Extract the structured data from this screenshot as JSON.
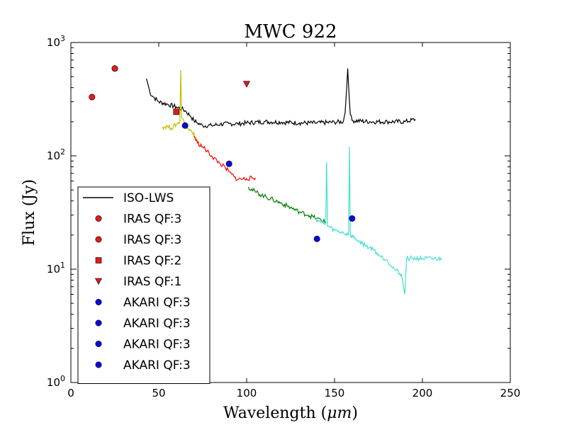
{
  "chart_data": {
    "type": "line",
    "title": "MWC 922",
    "xlabel": "Wavelength",
    "xlabel_unit": "μm",
    "ylabel": "Flux (Jy)",
    "xlim": [
      0,
      250
    ],
    "ylim": [
      1,
      1000
    ],
    "yscale": "log",
    "x_ticks": [
      0,
      50,
      100,
      150,
      200,
      250
    ],
    "y_ticks": [
      {
        "value": 1,
        "base": "10",
        "exp": "0"
      },
      {
        "value": 10,
        "base": "10",
        "exp": "1"
      },
      {
        "value": 100,
        "base": "10",
        "exp": "2"
      },
      {
        "value": 1000,
        "base": "10",
        "exp": "3"
      }
    ],
    "legend": {
      "position": "lower-left",
      "entries": [
        {
          "label": "ISO-LWS",
          "kind": "line",
          "color": "#000000"
        },
        {
          "label": "IRAS QF:3",
          "kind": "circle",
          "color": "#e31a1c"
        },
        {
          "label": "IRAS QF:3",
          "kind": "circle",
          "color": "#e31a1c"
        },
        {
          "label": "IRAS QF:2",
          "kind": "square",
          "color": "#e31a1c"
        },
        {
          "label": "IRAS QF:1",
          "kind": "triangle-down",
          "color": "#e31a1c"
        },
        {
          "label": "AKARI QF:3",
          "kind": "circle",
          "color": "#0a0ad8"
        },
        {
          "label": "AKARI QF:3",
          "kind": "circle",
          "color": "#0a0ad8"
        },
        {
          "label": "AKARI QF:3",
          "kind": "circle",
          "color": "#0a0ad8"
        },
        {
          "label": "AKARI QF:3",
          "kind": "circle",
          "color": "#0a0ad8"
        }
      ]
    },
    "series": [
      {
        "name": "ISO-LWS",
        "kind": "line",
        "color": "#000000",
        "points": [
          [
            43,
            480
          ],
          [
            44,
            420
          ],
          [
            45,
            360
          ],
          [
            47,
            330
          ],
          [
            50,
            300
          ],
          [
            55,
            285
          ],
          [
            60,
            270
          ],
          [
            63,
            260
          ],
          [
            65,
            250
          ],
          [
            68,
            225
          ],
          [
            70,
            205
          ],
          [
            72,
            195
          ],
          [
            75,
            185
          ],
          [
            80,
            185
          ],
          [
            85,
            190
          ],
          [
            90,
            192
          ],
          [
            95,
            192
          ],
          [
            100,
            195
          ],
          [
            110,
            200
          ],
          [
            120,
            198
          ],
          [
            130,
            195
          ],
          [
            140,
            195
          ],
          [
            150,
            198
          ],
          [
            155,
            200
          ],
          [
            156,
            240
          ],
          [
            157,
            420
          ],
          [
            157.5,
            590
          ],
          [
            158,
            420
          ],
          [
            159,
            230
          ],
          [
            160,
            205
          ],
          [
            170,
            200
          ],
          [
            180,
            200
          ],
          [
            190,
            200
          ],
          [
            196,
            210
          ]
        ]
      },
      {
        "name": "yellow segment",
        "kind": "line",
        "color": "#bfbf00",
        "points": [
          [
            52,
            180
          ],
          [
            55,
            182
          ],
          [
            57,
            175
          ],
          [
            60,
            190
          ],
          [
            62,
            200
          ],
          [
            62.5,
            570
          ],
          [
            63,
            220
          ],
          [
            64,
            210
          ],
          [
            65,
            195
          ],
          [
            67,
            170
          ],
          [
            70,
            160
          ],
          [
            73,
            130
          ]
        ]
      },
      {
        "name": "red segment",
        "kind": "line",
        "color": "#ff0000",
        "points": [
          [
            70,
            150
          ],
          [
            72,
            130
          ],
          [
            75,
            120
          ],
          [
            80,
            100
          ],
          [
            85,
            85
          ],
          [
            88,
            78
          ],
          [
            90,
            72
          ],
          [
            93,
            65
          ],
          [
            95,
            62
          ],
          [
            100,
            63
          ],
          [
            105,
            64
          ]
        ]
      },
      {
        "name": "green segment",
        "kind": "line",
        "color": "#007f00",
        "points": [
          [
            101,
            53
          ],
          [
            105,
            48
          ],
          [
            110,
            44
          ],
          [
            115,
            41
          ],
          [
            120,
            38
          ],
          [
            125,
            35
          ],
          [
            130,
            32
          ],
          [
            135,
            30
          ],
          [
            140,
            28
          ],
          [
            145,
            26
          ]
        ]
      },
      {
        "name": "cyan segment",
        "kind": "line",
        "color": "#40e0d0",
        "points": [
          [
            139,
            28
          ],
          [
            142,
            26
          ],
          [
            145,
            25
          ],
          [
            145.5,
            88
          ],
          [
            146,
            24
          ],
          [
            150,
            22
          ],
          [
            155,
            21
          ],
          [
            158,
            20
          ],
          [
            158.5,
            120
          ],
          [
            159,
            20
          ],
          [
            163,
            18
          ],
          [
            168,
            16
          ],
          [
            172,
            15
          ],
          [
            176,
            13
          ],
          [
            180,
            12
          ],
          [
            184,
            10
          ],
          [
            188,
            9
          ],
          [
            190,
            6
          ],
          [
            191,
            12.5
          ],
          [
            211,
            12.3
          ]
        ]
      }
    ],
    "points": [
      {
        "name": "IRAS QF:3",
        "x": 12,
        "y": 330,
        "marker": "circle",
        "color": "#e31a1c"
      },
      {
        "name": "IRAS QF:3",
        "x": 25,
        "y": 590,
        "marker": "circle",
        "color": "#e31a1c"
      },
      {
        "name": "IRAS QF:2",
        "x": 60,
        "y": 245,
        "marker": "square",
        "color": "#e31a1c"
      },
      {
        "name": "IRAS QF:1",
        "x": 100,
        "y": 430,
        "marker": "triangle-down",
        "color": "#e31a1c"
      },
      {
        "name": "AKARI QF:3",
        "x": 65,
        "y": 185,
        "marker": "circle",
        "color": "#0a0ad8"
      },
      {
        "name": "AKARI QF:3",
        "x": 90,
        "y": 85,
        "marker": "circle",
        "color": "#0a0ad8"
      },
      {
        "name": "AKARI QF:3",
        "x": 140,
        "y": 18.5,
        "marker": "circle",
        "color": "#0a0ad8"
      },
      {
        "name": "AKARI QF:3",
        "x": 160,
        "y": 28,
        "marker": "circle",
        "color": "#0a0ad8"
      }
    ]
  }
}
